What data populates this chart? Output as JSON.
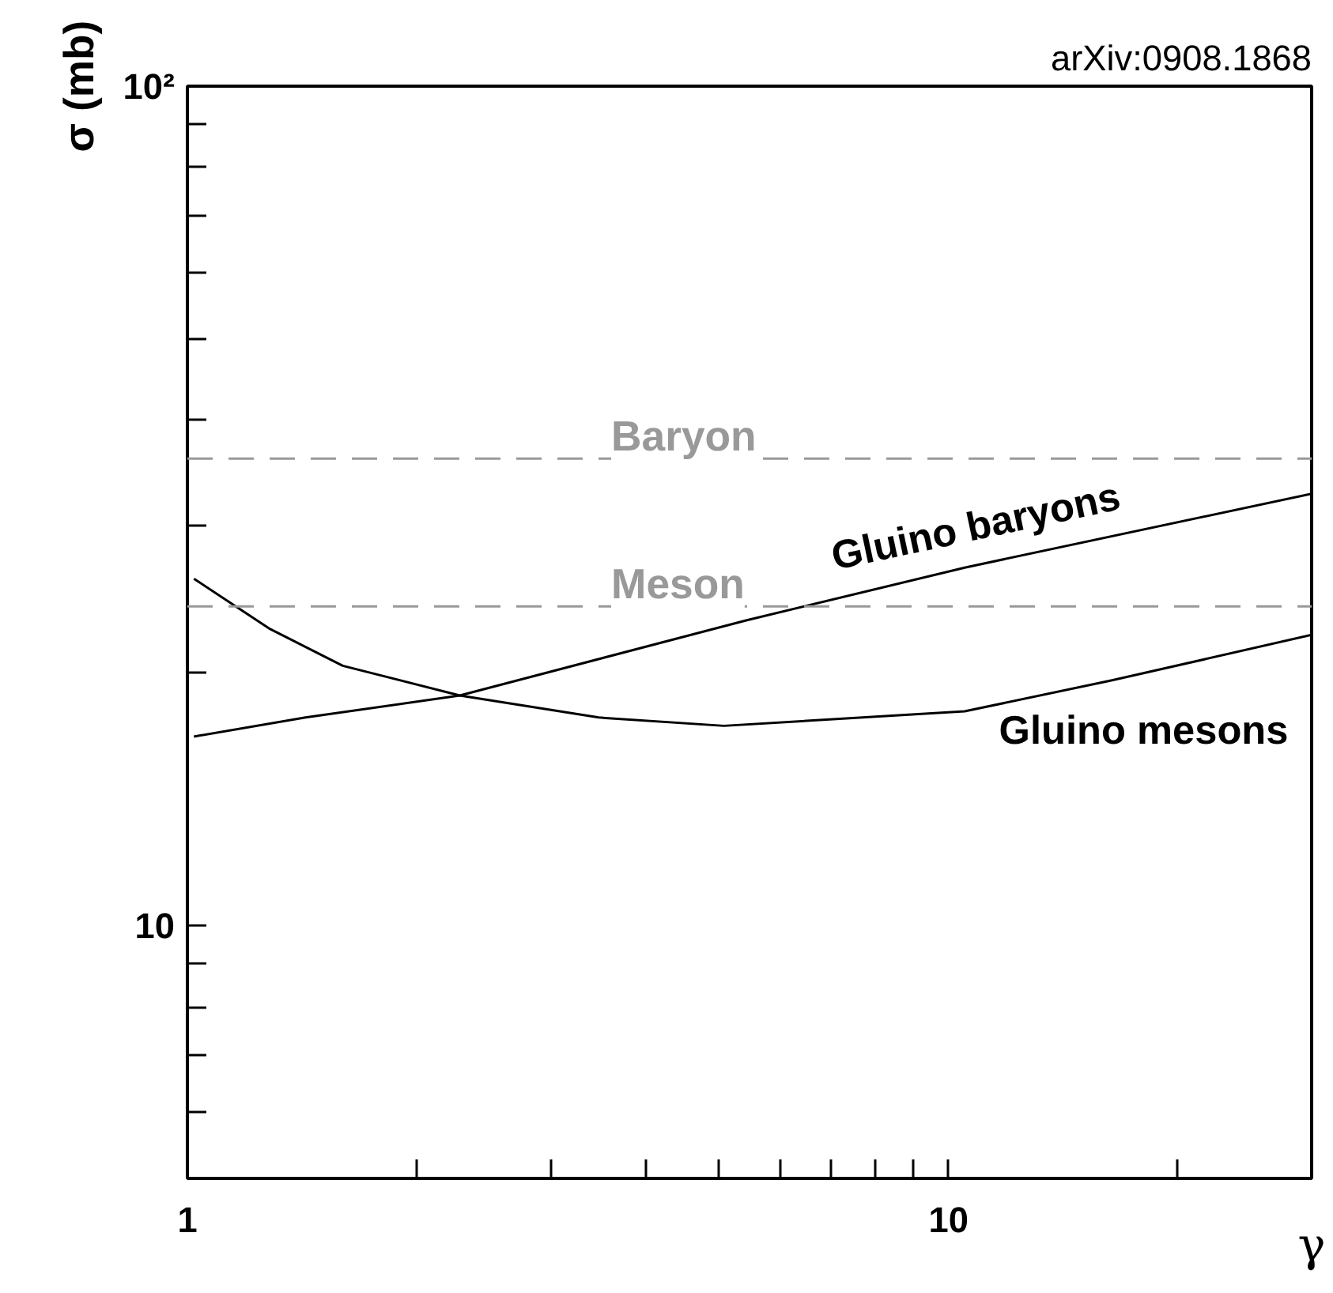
{
  "chart_data": {
    "type": "line",
    "xlabel": "γ",
    "ylabel": "σ (mb)",
    "log": "xy",
    "grid": false,
    "marker": "none",
    "line_style": "solid",
    "xlim": [
      1,
      30
    ],
    "ylim": [
      5,
      100
    ],
    "xticks": [
      1,
      {
        "value": 2,
        "label": null
      },
      {
        "value": 3,
        "label": null
      },
      {
        "value": 4,
        "label": null
      },
      {
        "value": 5,
        "label": null
      },
      {
        "value": 6,
        "label": null
      },
      {
        "value": 7,
        "label": null
      },
      {
        "value": 8,
        "label": null
      },
      {
        "value": 9,
        "label": null
      },
      10,
      {
        "value": 20,
        "label": null
      }
    ],
    "yticks": [
      {
        "value": 6,
        "label": null
      },
      {
        "value": 7,
        "label": null
      },
      {
        "value": 8,
        "label": null
      },
      {
        "value": 9,
        "label": null
      },
      10,
      {
        "value": 20,
        "label": null
      },
      {
        "value": 30,
        "label": null
      },
      {
        "value": 40,
        "label": null
      },
      {
        "value": 50,
        "label": null
      },
      {
        "value": 60,
        "label": null
      },
      {
        "value": 70,
        "label": null
      },
      {
        "value": 80,
        "label": null
      },
      {
        "value": 90,
        "label": null
      },
      {
        "value": 100,
        "label": "10²"
      }
    ],
    "series": [
      {
        "name": "Gluino baryons",
        "color": "#000000",
        "x": [
          1.02,
          1.43,
          2.28,
          5.42,
          10.5,
          30
        ],
        "values": [
          16.8,
          17.7,
          18.8,
          23.1,
          26.7,
          32.7
        ]
      },
      {
        "name": "Gluino mesons",
        "color": "#000000",
        "x": [
          1.02,
          1.28,
          1.6,
          2.28,
          3.47,
          5.07,
          10.5,
          16.4,
          30
        ],
        "values": [
          25.9,
          22.6,
          20.4,
          18.8,
          17.7,
          17.3,
          18.0,
          19.6,
          22.2
        ]
      }
    ],
    "ref_lines": [
      {
        "axis": "y",
        "value": 36,
        "label": "Baryon",
        "color": "#999999",
        "line_style": "dashed"
      },
      {
        "axis": "y",
        "value": 24,
        "label": "Meson",
        "color": "#999999",
        "line_style": "dashed"
      }
    ],
    "annotations": [
      "arXiv:0908.1868"
    ]
  }
}
